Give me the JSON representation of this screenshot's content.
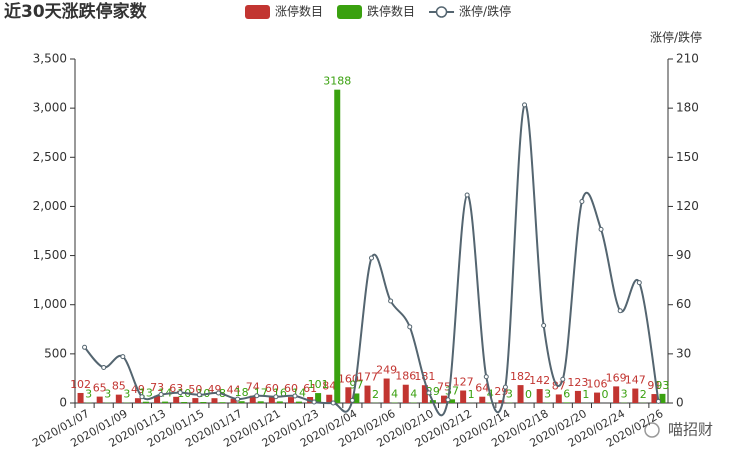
{
  "chart_data": {
    "type": "bar-line",
    "title": "近30天涨跌停家数",
    "y2_label": "涨停/跌停",
    "watermark": "喵招财",
    "categories": [
      "2020/01/07",
      null,
      "2020/01/09",
      null,
      "2020/01/13",
      null,
      "2020/01/15",
      null,
      "2020/01/17",
      null,
      "2020/01/21",
      null,
      "2020/01/23",
      null,
      "2020/02/04",
      null,
      "2020/02/06",
      null,
      "2020/02/10",
      null,
      "2020/02/12",
      null,
      "2020/02/14",
      null,
      "2020/02/18",
      null,
      "2020/02/20",
      null,
      "2020/02/24",
      null,
      "2020/02/26"
    ],
    "series": [
      {
        "name": "涨停数目",
        "type": "bar",
        "color": "#c23531",
        "values": [
          102,
          65,
          85,
          49,
          73,
          63,
          50,
          49,
          44,
          74,
          60,
          60,
          61,
          84,
          160,
          177,
          249,
          186,
          181,
          75,
          127,
          64,
          29,
          182,
          142,
          87,
          123,
          106,
          169,
          147,
          91
        ]
      },
      {
        "name": "跌停数目",
        "type": "bar",
        "color": "#3aa10f",
        "values": [
          3,
          3,
          3,
          13,
          14,
          10,
          10,
          8,
          18,
          17,
          16,
          14,
          101,
          3188,
          97,
          2,
          4,
          4,
          29,
          37,
          1,
          4,
          3,
          0,
          3,
          6,
          1,
          0,
          3,
          2,
          93
        ]
      },
      {
        "name": "涨停/跌停",
        "type": "line",
        "axis": "y2",
        "color": "#546570",
        "values": [
          34,
          21.7,
          28.3,
          3.8,
          5.2,
          6.3,
          5,
          6.1,
          2.4,
          4.4,
          3.8,
          4.3,
          0.6,
          0.03,
          1.6,
          88.5,
          62.3,
          46.5,
          6.2,
          2,
          127,
          16,
          9.7,
          182,
          47.3,
          14.5,
          123,
          106,
          56.3,
          73.5,
          1
        ]
      }
    ],
    "ylim": [
      0,
      3500
    ],
    "yticks": [
      0,
      500,
      {
        "value": 1000,
        "label": "1,000"
      },
      {
        "value": 1500,
        "label": "1,500"
      },
      {
        "value": 2000,
        "label": "2,000"
      },
      {
        "value": 2500,
        "label": "2,500"
      },
      {
        "value": 3000,
        "label": "3,000"
      },
      {
        "value": 3500,
        "label": "3,500"
      }
    ],
    "y2lim": [
      0,
      210
    ],
    "y2ticks": [
      0,
      30,
      60,
      90,
      120,
      150,
      180,
      210
    ],
    "grid": false
  }
}
